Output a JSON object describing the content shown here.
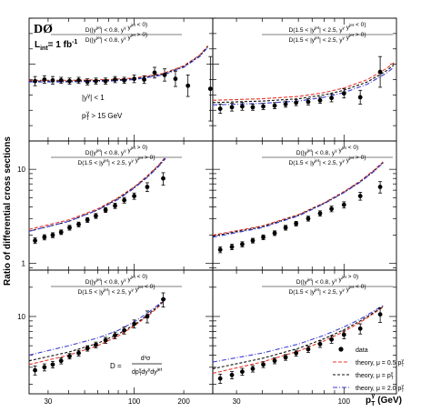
{
  "experiment": "DØ",
  "lumi": "L",
  "lumi_sub": "int",
  "lumi_value": "= 1 fb",
  "lumi_sup": "-1",
  "ylabel": "Ratio of differential cross sections",
  "xlabel": "p",
  "xlabel_sup": "γ",
  "xlabel_sub": "T",
  "xlabel_unit": "(GeV)",
  "cuts": {
    "line1": "|y",
    "line1_sup": "γ",
    "line1_end": "| < 1",
    "line2": "p",
    "line2_sub": "T",
    "line2_sup": "γ",
    "line2_end": " > 15 GeV"
  },
  "formula": {
    "lhs": "D =",
    "num": "d³σ",
    "den": "dp",
    "den_sub": "T",
    "den_sup": "γ",
    "den_mid": "dy",
    "den_mid_sup": "γ",
    "den_end": "dy",
    "den_end_sup": "jet"
  },
  "legend": [
    "data",
    "theory, μ = 0.5 p",
    "theory, μ = p",
    "theory, μ = 2.0 p"
  ],
  "legend_sub": "T",
  "legend_sup": "γ",
  "colors": {
    "data": "#000000",
    "mu05": "#e8382c",
    "mu1": "#111111",
    "mu2": "#3d3dd4"
  },
  "x_ticks": [
    30,
    100,
    200
  ],
  "y_ticks_log": [
    1,
    10
  ],
  "chart_data": [
    {
      "panel": 1,
      "type": "scatter",
      "title_num": "D(|y^jet| < 0.8,  y^γ y^jet < 0)",
      "title_den": "D(|y^jet| < 0.8,  y^γ y^jet > 0)",
      "xlim": [
        23,
        300
      ],
      "ylim": [
        0,
        1.6
      ],
      "yscale": "linear",
      "y_ticks": [],
      "data": {
        "x": [
          25,
          28.5,
          32,
          36,
          40.5,
          46,
          52,
          58.5,
          67,
          76.5,
          87,
          100,
          115,
          133,
          153,
          178,
          212,
          290
        ],
        "y": [
          0.78,
          0.8,
          0.79,
          0.79,
          0.78,
          0.79,
          0.77,
          0.78,
          0.78,
          0.8,
          0.79,
          0.81,
          0.8,
          0.89,
          0.86,
          0.81,
          0.72,
          0.68
        ],
        "err": [
          0.06,
          0.05,
          0.05,
          0.04,
          0.04,
          0.04,
          0.04,
          0.04,
          0.04,
          0.04,
          0.04,
          0.05,
          0.05,
          0.07,
          0.08,
          0.1,
          0.14,
          0.42
        ]
      },
      "series": [
        {
          "name": "theory, μ = 0.5 p",
          "x": [
            23,
            40,
            70,
            100,
            150,
            200,
            250,
            280
          ],
          "y": [
            0.79,
            0.79,
            0.8,
            0.82,
            0.88,
            0.98,
            1.12,
            1.24
          ]
        },
        {
          "name": "theory, μ = p",
          "x": [
            23,
            40,
            70,
            100,
            150,
            200,
            250,
            280
          ],
          "y": [
            0.78,
            0.78,
            0.79,
            0.81,
            0.87,
            0.97,
            1.11,
            1.23
          ]
        },
        {
          "name": "theory, μ = 2.0 p",
          "x": [
            23,
            40,
            70,
            100,
            150,
            200,
            250,
            280
          ],
          "y": [
            0.77,
            0.77,
            0.78,
            0.8,
            0.86,
            0.96,
            1.1,
            1.22
          ]
        }
      ]
    },
    {
      "panel": 2,
      "type": "scatter",
      "title_num": "D(1.5 < |y^jet| < 2.5,  y^γ y^jet < 0)",
      "title_den": "D(1.5 < |y^jet| < 2.5,  y^γ y^jet > 0)",
      "xlim": [
        23,
        180
      ],
      "ylim": [
        0,
        1.6
      ],
      "yscale": "linear",
      "y_ticks": [],
      "data": {
        "x": [
          25,
          28.5,
          32,
          36,
          40.5,
          46,
          52,
          58.5,
          67,
          76.5,
          87,
          100,
          120,
          150
        ],
        "y": [
          0.42,
          0.44,
          0.45,
          0.44,
          0.45,
          0.46,
          0.48,
          0.5,
          0.51,
          0.53,
          0.56,
          0.62,
          0.57,
          0.9
        ],
        "err": [
          0.06,
          0.05,
          0.05,
          0.04,
          0.04,
          0.04,
          0.04,
          0.04,
          0.04,
          0.04,
          0.05,
          0.06,
          0.09,
          0.2
        ]
      },
      "series": [
        {
          "name": "theory, μ = 0.5 p",
          "x": [
            23,
            40,
            60,
            80,
            100,
            130,
            160,
            175
          ],
          "y": [
            0.53,
            0.55,
            0.58,
            0.63,
            0.69,
            0.8,
            0.94,
            1.02
          ]
        },
        {
          "name": "theory, μ = p",
          "x": [
            23,
            40,
            60,
            80,
            100,
            130,
            160,
            175
          ],
          "y": [
            0.5,
            0.52,
            0.55,
            0.6,
            0.66,
            0.77,
            0.91,
            0.99
          ]
        },
        {
          "name": "theory, μ = 2.0 p",
          "x": [
            23,
            40,
            60,
            80,
            100,
            130,
            160,
            175
          ],
          "y": [
            0.47,
            0.49,
            0.52,
            0.57,
            0.63,
            0.74,
            0.88,
            0.96
          ]
        }
      ]
    },
    {
      "panel": 3,
      "type": "scatter",
      "title_num": "D(|y^jet| < 0.8,  y^γ y^jet > 0)",
      "title_den": "D(1.5 < |y^jet| < 2.5,  y^γ y^jet > 0)",
      "xlim": [
        23,
        300
      ],
      "ylim": [
        0.85,
        20
      ],
      "yscale": "log",
      "y_ticks": [
        1,
        10
      ],
      "data": {
        "x": [
          25,
          28.5,
          32,
          36,
          40.5,
          46,
          52,
          58.5,
          67,
          76.5,
          87,
          100,
          120,
          150
        ],
        "y": [
          1.75,
          1.9,
          2.0,
          2.15,
          2.4,
          2.6,
          2.9,
          3.2,
          3.7,
          4.1,
          4.7,
          5.2,
          6.5,
          8.0
        ],
        "err": [
          0.12,
          0.12,
          0.12,
          0.12,
          0.14,
          0.15,
          0.17,
          0.19,
          0.22,
          0.26,
          0.32,
          0.4,
          0.7,
          1.2
        ]
      },
      "series": [
        {
          "name": "theory, μ = 0.5 p",
          "x": [
            23,
            40,
            60,
            80,
            100,
            120,
            140,
            155
          ],
          "y": [
            2.3,
            2.9,
            3.8,
            5.0,
            6.5,
            8.5,
            11.0,
            13.5
          ]
        },
        {
          "name": "theory, μ = p",
          "x": [
            23,
            40,
            60,
            80,
            100,
            120,
            140,
            155
          ],
          "y": [
            2.2,
            2.8,
            3.7,
            4.9,
            6.4,
            8.3,
            10.8,
            13.2
          ]
        },
        {
          "name": "theory, μ = 2.0 p",
          "x": [
            23,
            40,
            60,
            80,
            100,
            120,
            140,
            155
          ],
          "y": [
            2.2,
            2.8,
            3.7,
            4.8,
            6.3,
            8.2,
            10.6,
            13.0
          ]
        }
      ]
    },
    {
      "panel": 4,
      "type": "scatter",
      "title_num": "D(|y^jet| < 0.8,  y^γ y^jet < 0)",
      "title_den": "D(1.5 < |y^jet| < 2.5,  y^γ y^jet > 0)",
      "xlim": [
        23,
        180
      ],
      "ylim": [
        0.85,
        20
      ],
      "yscale": "log",
      "y_ticks": [
        1,
        10
      ],
      "data": {
        "x": [
          25,
          28.5,
          32,
          36,
          40.5,
          46,
          52,
          58.5,
          67,
          76.5,
          87,
          100,
          120,
          150
        ],
        "y": [
          1.4,
          1.5,
          1.6,
          1.75,
          1.9,
          2.1,
          2.4,
          2.65,
          3.0,
          3.4,
          3.8,
          4.2,
          5.2,
          6.5
        ],
        "err": [
          0.1,
          0.1,
          0.1,
          0.1,
          0.11,
          0.12,
          0.14,
          0.15,
          0.18,
          0.22,
          0.26,
          0.32,
          0.5,
          0.9
        ]
      },
      "series": [
        {
          "name": "theory, μ = 0.5 p",
          "x": [
            23,
            40,
            60,
            80,
            100,
            120,
            140,
            155
          ],
          "y": [
            2.0,
            2.5,
            3.3,
            4.4,
            5.8,
            7.5,
            9.8,
            12.0
          ]
        },
        {
          "name": "theory, μ = p",
          "x": [
            23,
            40,
            60,
            80,
            100,
            120,
            140,
            155
          ],
          "y": [
            1.95,
            2.45,
            3.25,
            4.35,
            5.7,
            7.4,
            9.6,
            11.8
          ]
        },
        {
          "name": "theory, μ = 2.0 p",
          "x": [
            23,
            40,
            60,
            80,
            100,
            120,
            140,
            155
          ],
          "y": [
            1.9,
            2.4,
            3.2,
            4.3,
            5.65,
            7.3,
            9.5,
            11.7
          ]
        }
      ]
    },
    {
      "panel": 5,
      "type": "scatter",
      "title_num": "D(|y^jet| < 0.8,  y^γ y^jet < 0)",
      "title_den": "D(1.5 < |y^jet| < 2.5,  y^γ y^jet < 0)",
      "xlim": [
        23,
        300
      ],
      "ylim": [
        1.6,
        30
      ],
      "yscale": "log",
      "y_ticks": [
        10
      ],
      "data": {
        "x": [
          25,
          28.5,
          32,
          36,
          40.5,
          46,
          52,
          58.5,
          67,
          76.5,
          87,
          100,
          120,
          150
        ],
        "y": [
          2.8,
          3.0,
          3.2,
          3.5,
          3.9,
          4.2,
          4.7,
          5.1,
          5.7,
          6.4,
          7.2,
          8.4,
          10.0,
          15.0
        ],
        "err": [
          0.3,
          0.25,
          0.25,
          0.25,
          0.25,
          0.28,
          0.3,
          0.35,
          0.4,
          0.5,
          0.6,
          0.8,
          1.4,
          2.5
        ]
      },
      "series": [
        {
          "name": "theory, μ = 0.5 p",
          "x": [
            23,
            40,
            60,
            80,
            100,
            120,
            140,
            155
          ],
          "y": [
            3.2,
            4.0,
            5.0,
            6.3,
            8.0,
            10.0,
            12.5,
            15.0
          ]
        },
        {
          "name": "theory, μ = p",
          "x": [
            23,
            40,
            60,
            80,
            100,
            120,
            140,
            155
          ],
          "y": [
            3.5,
            4.3,
            5.3,
            6.6,
            8.2,
            10.3,
            12.8,
            15.2
          ]
        },
        {
          "name": "theory, μ = 2.0 p",
          "x": [
            23,
            40,
            60,
            80,
            100,
            120,
            140,
            155
          ],
          "y": [
            4.0,
            5.0,
            6.0,
            7.2,
            8.8,
            10.8,
            13.2,
            15.5
          ]
        }
      ]
    },
    {
      "panel": 6,
      "type": "scatter",
      "title_num": "D(|y^jet| < 0.8,  y^γ y^jet > 0)",
      "title_den": "D(1.5 < |y^jet| < 2.5,  y^γ y^jet < 0)",
      "xlim": [
        23,
        180
      ],
      "ylim": [
        1.6,
        30
      ],
      "yscale": "log",
      "y_ticks": [
        10
      ],
      "data": {
        "x": [
          25,
          28.5,
          32,
          36,
          40.5,
          46,
          52,
          58.5,
          67,
          76.5,
          87,
          100,
          120,
          150
        ],
        "y": [
          2.3,
          2.5,
          2.7,
          2.9,
          3.2,
          3.5,
          3.8,
          4.2,
          4.6,
          5.2,
          5.8,
          6.5,
          7.5,
          10.5
        ],
        "err": [
          0.25,
          0.22,
          0.22,
          0.22,
          0.22,
          0.24,
          0.26,
          0.3,
          0.35,
          0.4,
          0.5,
          0.6,
          0.9,
          1.8
        ]
      },
      "series": [
        {
          "name": "theory, μ = 0.5 p",
          "x": [
            23,
            40,
            60,
            80,
            100,
            120,
            140,
            155
          ],
          "y": [
            2.6,
            3.4,
            4.4,
            5.6,
            7.0,
            8.7,
            10.8,
            12.5
          ]
        },
        {
          "name": "theory, μ = p",
          "x": [
            23,
            40,
            60,
            80,
            100,
            120,
            140,
            155
          ],
          "y": [
            2.9,
            3.7,
            4.7,
            5.9,
            7.3,
            9.0,
            11.0,
            12.8
          ]
        },
        {
          "name": "theory, μ = 2.0 p",
          "x": [
            23,
            40,
            60,
            80,
            100,
            120,
            140,
            155
          ],
          "y": [
            3.4,
            4.2,
            5.2,
            6.4,
            7.8,
            9.4,
            11.4,
            13.0
          ]
        }
      ]
    }
  ]
}
